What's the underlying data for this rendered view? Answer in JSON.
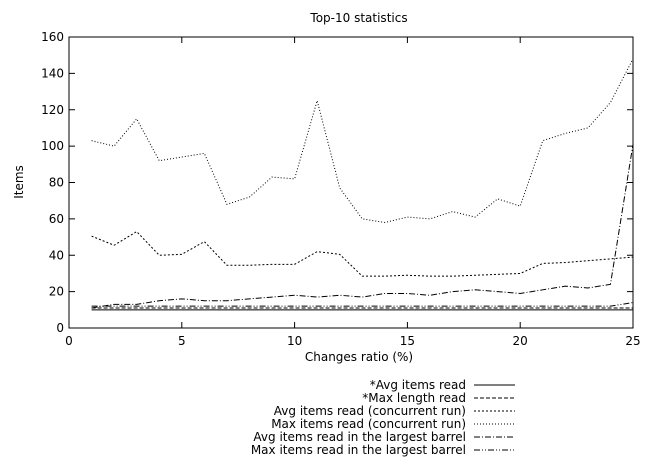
{
  "chart_data": {
    "type": "line",
    "title": "Top-10 statistics",
    "xlabel": "Changes ratio (%)",
    "ylabel": "Items",
    "xlim": [
      0,
      25
    ],
    "ylim": [
      0,
      160
    ],
    "xticks": [
      0,
      5,
      10,
      15,
      20,
      25
    ],
    "yticks": [
      0,
      20,
      40,
      60,
      80,
      100,
      120,
      140,
      160
    ],
    "grid": false,
    "legend_position": "bottom-right, below plot",
    "x": [
      1,
      2,
      3,
      4,
      5,
      6,
      7,
      8,
      9,
      10,
      11,
      12,
      13,
      14,
      15,
      16,
      17,
      18,
      19,
      20,
      21,
      22,
      23,
      24,
      25
    ],
    "series": [
      {
        "name": "*Avg items read",
        "dash": "solid",
        "values": [
          10,
          10,
          10,
          10,
          10,
          10,
          10,
          10,
          10,
          10,
          10,
          10,
          10,
          10,
          10,
          10,
          10,
          10,
          10,
          10,
          10,
          10,
          10,
          10,
          10
        ]
      },
      {
        "name": "*Max length read",
        "dash": "dashed",
        "values": [
          11,
          11,
          11,
          11,
          11,
          11,
          11,
          11,
          11,
          11,
          11,
          11,
          11,
          11,
          11,
          11,
          11,
          11,
          11,
          11,
          11,
          11,
          11,
          11,
          11
        ]
      },
      {
        "name": "Avg items read (concurrent run)",
        "dash": "dense-dotted",
        "values": [
          50.5,
          45.5,
          53,
          40,
          40.5,
          47.5,
          34.5,
          34.5,
          35,
          35,
          42,
          40.5,
          28.5,
          28.5,
          29,
          28.5,
          28.5,
          29,
          29.5,
          30,
          35.5,
          36,
          37,
          38,
          39
        ]
      },
      {
        "name": "Max items read (concurrent run)",
        "dash": "dotted",
        "values": [
          103,
          100,
          115,
          92,
          94,
          96,
          68,
          72,
          83,
          82,
          125,
          77,
          60,
          58,
          61,
          60,
          64,
          61,
          71,
          67,
          103,
          107,
          110,
          124,
          148
        ]
      },
      {
        "name": "Avg items read in the largest barrel",
        "dash": "dash-dot",
        "values": [
          11,
          13,
          13,
          15,
          16,
          15,
          15,
          16,
          17,
          18,
          17,
          18,
          17,
          19,
          19,
          18,
          20,
          21,
          20,
          19,
          21,
          23,
          22,
          24,
          101
        ]
      },
      {
        "name": "Max items read in the largest barrel",
        "dash": "dash-dot-dot",
        "values": [
          12,
          12,
          12,
          12,
          12,
          12,
          12,
          12,
          12,
          12,
          12,
          12,
          12,
          12,
          12,
          12,
          12,
          12,
          12,
          12,
          12,
          12,
          12,
          12,
          14
        ]
      }
    ]
  }
}
